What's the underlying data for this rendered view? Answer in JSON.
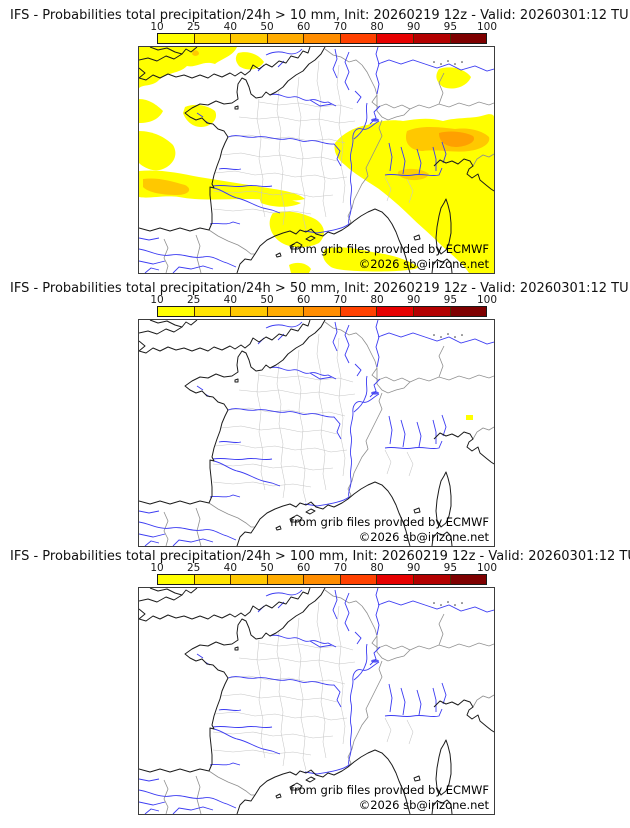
{
  "panels": [
    {
      "threshold_mm": "10",
      "title": "IFS - Probabilities total precipitation/24h > 10 mm, Init: 20260219 12z - Valid: 20260301:12 TU"
    },
    {
      "threshold_mm": "50",
      "title": "IFS - Probabilities total precipitation/24h > 50 mm, Init: 20260219 12z - Valid: 20260301:12 TU"
    },
    {
      "threshold_mm": "100",
      "title": "IFS - Probabilities total precipitation/24h > 100 mm, Init: 20260219 12z - Valid: 20260301:12 TU"
    }
  ],
  "colorbar": {
    "tick_labels": [
      "10",
      "25",
      "40",
      "50",
      "60",
      "70",
      "80",
      "90",
      "95",
      "100"
    ],
    "segment_colors": [
      "#ffff00",
      "#ffe400",
      "#ffc800",
      "#ffab00",
      "#ff8d00",
      "#ff4100",
      "#e60000",
      "#b30000",
      "#7e0000"
    ]
  },
  "attribution": {
    "source_line": "from grib files provided by ECMWF",
    "copyright_line": "©2026 sb@irizone.net"
  },
  "map_colors": {
    "coastline": "#1b1b1b",
    "country_border": "#8f8f8f",
    "department_border": "#c6c6c6",
    "river": "#3c3cf2",
    "probability_low": "#ffff00",
    "probability_mid": "#ffc800",
    "probability_high": "#ffa000",
    "sea_and_land": "#ffffff"
  }
}
